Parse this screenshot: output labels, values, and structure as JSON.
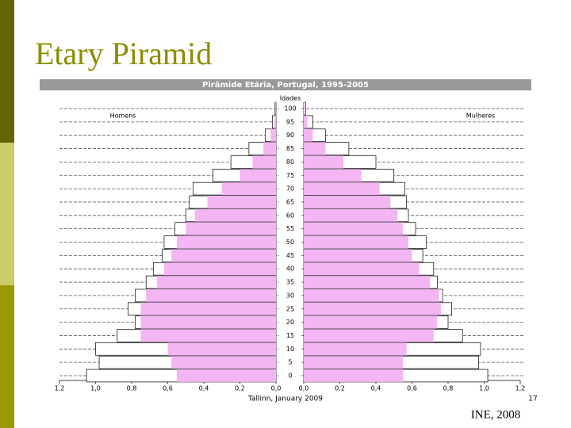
{
  "slide": {
    "title": "Etary Piramid",
    "source": "INE, 2008",
    "footer": "Tallinn, January 2009",
    "page_number": "17"
  },
  "chart_data": {
    "type": "pyramid",
    "title": "Pirâmide Etária, Portugal, 1995-2005",
    "y_label": "Idades",
    "categories": [
      0,
      5,
      10,
      15,
      20,
      25,
      30,
      35,
      40,
      45,
      50,
      55,
      60,
      65,
      70,
      75,
      80,
      85,
      90,
      95,
      100
    ],
    "ylim": [
      0,
      100
    ],
    "yticks": [
      0,
      5,
      10,
      15,
      20,
      25,
      30,
      35,
      40,
      45,
      50,
      55,
      60,
      65,
      70,
      75,
      80,
      85,
      90,
      95,
      100
    ],
    "xlim": [
      0,
      1.2
    ],
    "xticks": [
      {
        "value": 0,
        "label": "0,0"
      },
      {
        "value": 0.2,
        "label": "0,2"
      },
      {
        "value": 0.4,
        "label": "0,4"
      },
      {
        "value": 0.6,
        "label": "0,6"
      },
      {
        "value": 0.8,
        "label": "0,8"
      },
      {
        "value": 1.0,
        "label": "1,0"
      },
      {
        "value": 1.2,
        "label": "1,2"
      }
    ],
    "grid": true,
    "groups": [
      {
        "name": "Homens",
        "side": "left",
        "series": [
          {
            "color": "#ffffff",
            "values": [
              1.05,
              0.98,
              1.0,
              0.88,
              0.78,
              0.82,
              0.78,
              0.72,
              0.68,
              0.63,
              0.62,
              0.56,
              0.5,
              0.48,
              0.46,
              0.35,
              0.25,
              0.15,
              0.06,
              0.02,
              0.005
            ]
          },
          {
            "color": "#f3b6f3",
            "values": [
              0.55,
              0.58,
              0.6,
              0.75,
              0.75,
              0.75,
              0.72,
              0.66,
              0.62,
              0.58,
              0.55,
              0.5,
              0.45,
              0.38,
              0.3,
              0.2,
              0.13,
              0.07,
              0.03,
              0.01,
              0.002
            ]
          }
        ]
      },
      {
        "name": "Mulheres",
        "side": "right",
        "series": [
          {
            "color": "#ffffff",
            "values": [
              1.02,
              0.97,
              0.98,
              0.88,
              0.8,
              0.82,
              0.77,
              0.74,
              0.72,
              0.66,
              0.68,
              0.62,
              0.58,
              0.57,
              0.56,
              0.5,
              0.4,
              0.25,
              0.12,
              0.05,
              0.01
            ]
          },
          {
            "color": "#f3b6f3",
            "values": [
              0.55,
              0.55,
              0.57,
              0.72,
              0.74,
              0.76,
              0.75,
              0.7,
              0.64,
              0.6,
              0.58,
              0.55,
              0.52,
              0.48,
              0.42,
              0.32,
              0.22,
              0.12,
              0.05,
              0.02,
              0.004
            ]
          }
        ]
      }
    ]
  }
}
